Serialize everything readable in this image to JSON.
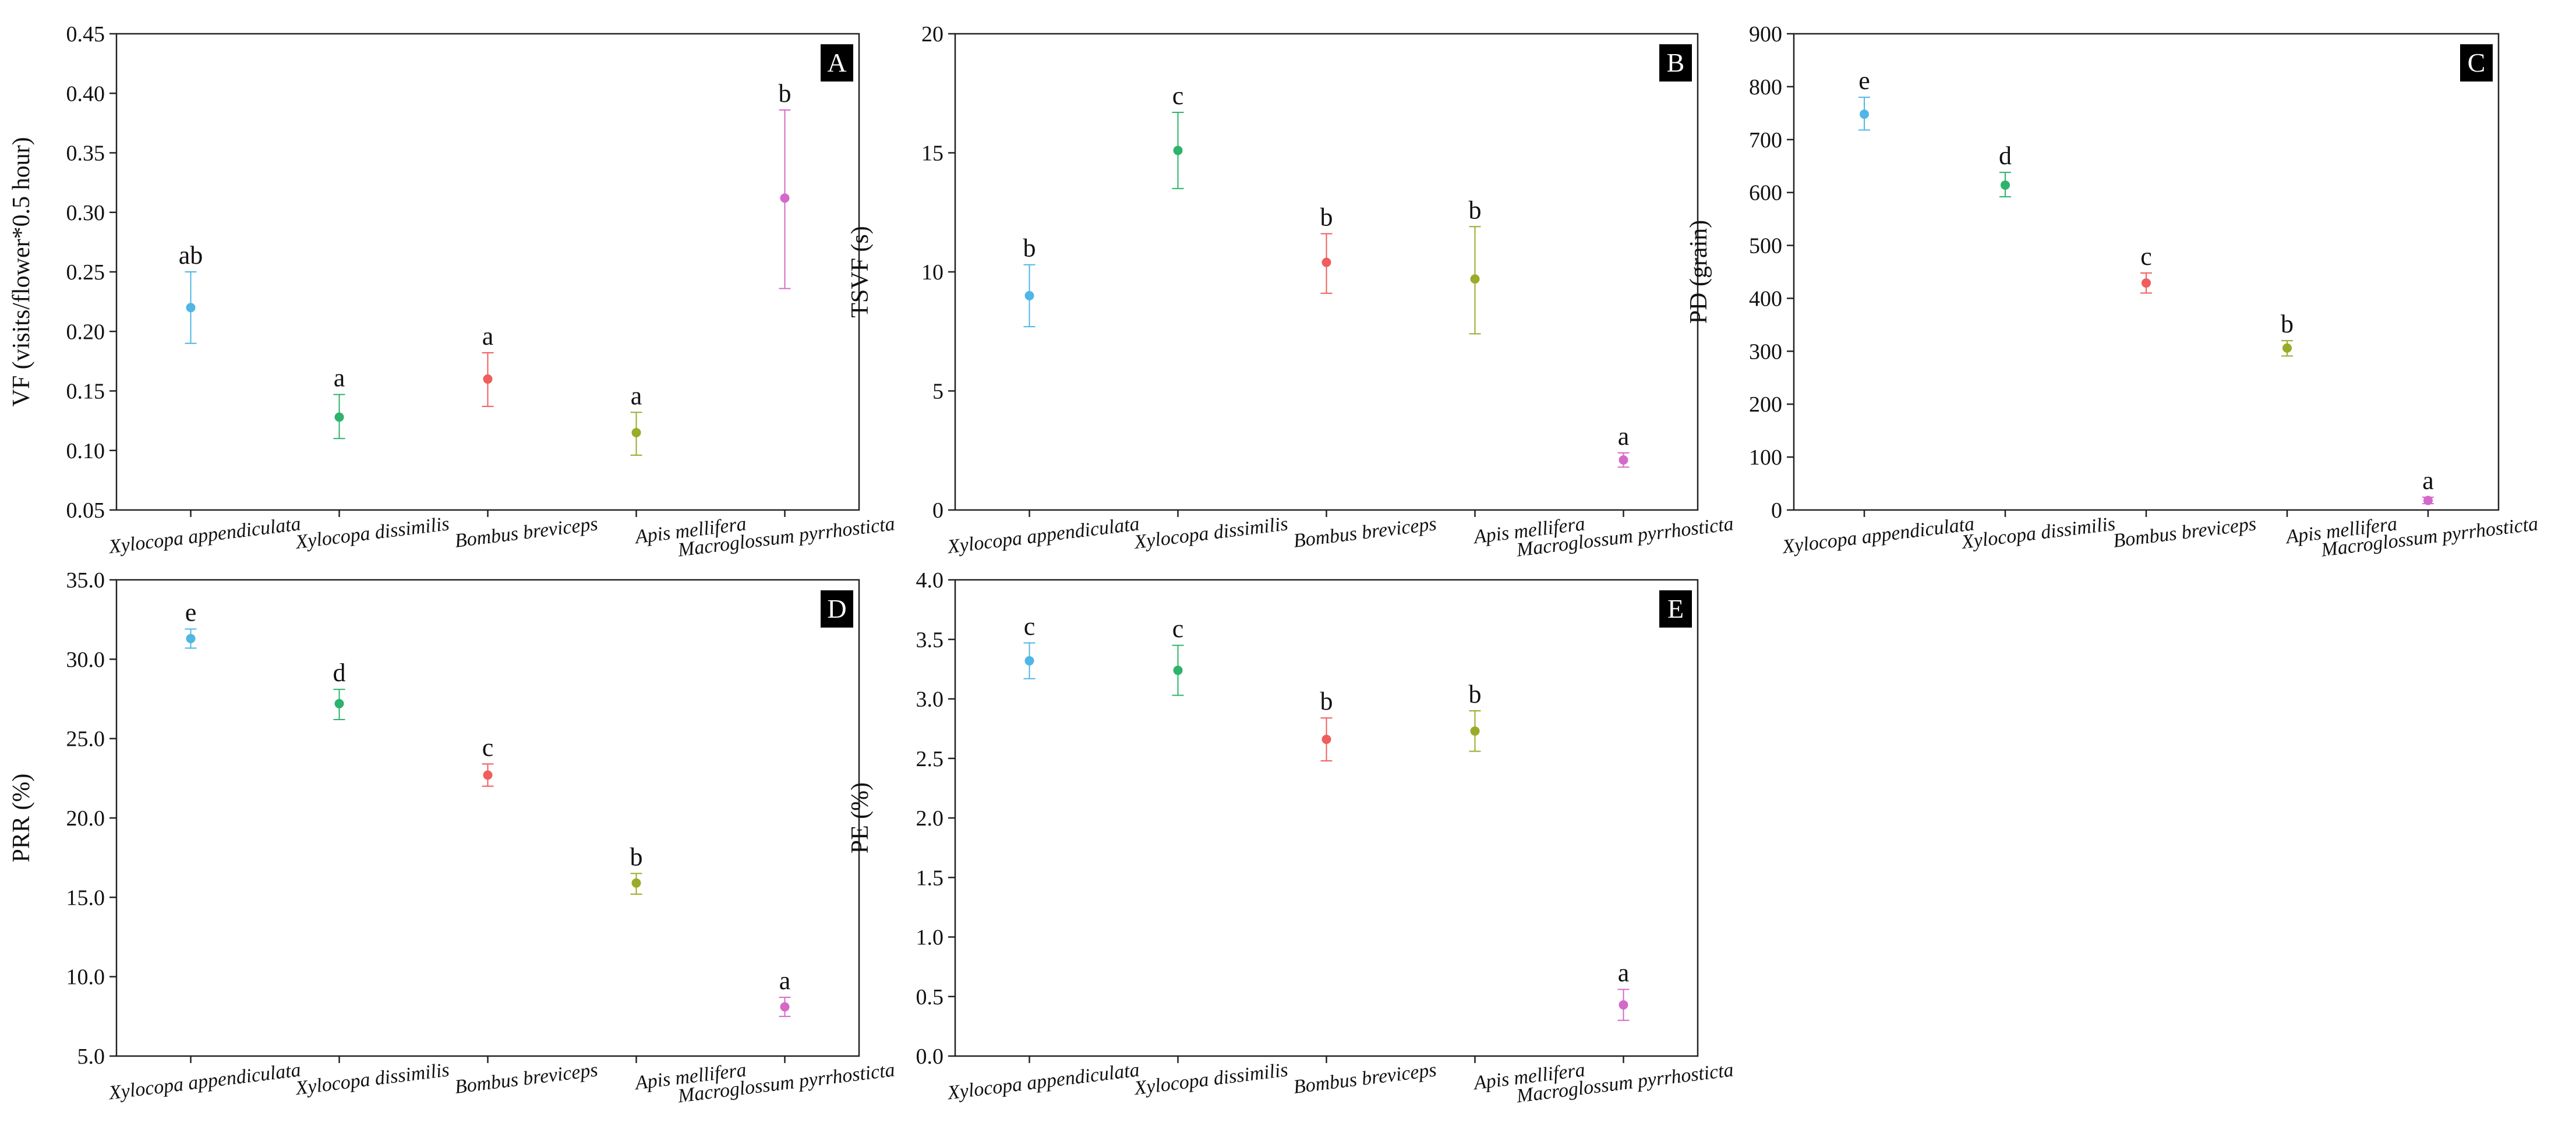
{
  "chart_data": [
    {
      "panel": "A",
      "type": "scatter",
      "ylabel": "VF (visits/flower*0.5 hour)",
      "xlabel": "",
      "ylim": [
        0.05,
        0.45
      ],
      "yticks": [
        0.05,
        0.1,
        0.15,
        0.2,
        0.25,
        0.3,
        0.35,
        0.4,
        0.45
      ],
      "ytick_labels": [
        "0.05",
        "0.10",
        "0.15",
        "0.20",
        "0.25",
        "0.30",
        "0.35",
        "0.40",
        "0.45"
      ],
      "categories": [
        "Xylocopa appendiculata",
        "Xylocopa dissimilis",
        "Bombus breviceps",
        "Apis mellifera",
        "Macroglossum pyrrhosticta"
      ],
      "values": [
        0.22,
        0.128,
        0.16,
        0.115,
        0.312
      ],
      "err_low": [
        0.19,
        0.11,
        0.137,
        0.096,
        0.236
      ],
      "err_high": [
        0.25,
        0.147,
        0.182,
        0.132,
        0.386
      ],
      "letters": [
        "ab",
        "a",
        "a",
        "a",
        "b"
      ],
      "colors": [
        "#4fb6e5",
        "#2db36a",
        "#ef5d5d",
        "#9aab2a",
        "#d36ac8"
      ]
    },
    {
      "panel": "B",
      "type": "scatter",
      "ylabel": "TSVF (s)",
      "xlabel": "",
      "ylim": [
        0,
        20
      ],
      "yticks": [
        0,
        5,
        10,
        15,
        20
      ],
      "ytick_labels": [
        "0",
        "5",
        "10",
        "15",
        "20"
      ],
      "categories": [
        "Xylocopa appendiculata",
        "Xylocopa dissimilis",
        "Bombus breviceps",
        "Apis mellifera",
        "Macroglossum pyrrhosticta"
      ],
      "values": [
        9.0,
        15.1,
        10.4,
        9.7,
        2.1
      ],
      "err_low": [
        7.7,
        13.5,
        9.1,
        7.4,
        1.8
      ],
      "err_high": [
        10.3,
        16.7,
        11.6,
        11.9,
        2.4
      ],
      "letters": [
        "b",
        "c",
        "b",
        "b",
        "a"
      ],
      "colors": [
        "#4fb6e5",
        "#2db36a",
        "#ef5d5d",
        "#9aab2a",
        "#d36ac8"
      ]
    },
    {
      "panel": "C",
      "type": "scatter",
      "ylabel": "PD (grain)",
      "xlabel": "",
      "ylim": [
        0,
        900
      ],
      "yticks": [
        0,
        100,
        200,
        300,
        400,
        500,
        600,
        700,
        800,
        900
      ],
      "ytick_labels": [
        "0",
        "100",
        "200",
        "300",
        "400",
        "500",
        "600",
        "700",
        "800",
        "900"
      ],
      "categories": [
        "Xylocopa appendiculata",
        "Xylocopa dissimilis",
        "Bombus breviceps",
        "Apis mellifera",
        "Macroglossum pyrrhosticta"
      ],
      "values": [
        748,
        614,
        429,
        306,
        18
      ],
      "err_low": [
        718,
        592,
        410,
        291,
        12
      ],
      "err_high": [
        780,
        638,
        448,
        320,
        24
      ],
      "letters": [
        "e",
        "d",
        "c",
        "b",
        "a"
      ],
      "colors": [
        "#4fb6e5",
        "#2db36a",
        "#ef5d5d",
        "#9aab2a",
        "#d36ac8"
      ]
    },
    {
      "panel": "D",
      "type": "scatter",
      "ylabel": "PRR (%)",
      "xlabel": "",
      "ylim": [
        5,
        35
      ],
      "yticks": [
        5,
        10,
        15,
        20,
        25,
        30,
        35
      ],
      "ytick_labels": [
        "5.0",
        "10.0",
        "15.0",
        "20.0",
        "25.0",
        "30.0",
        "35.0"
      ],
      "categories": [
        "Xylocopa appendiculata",
        "Xylocopa dissimilis",
        "Bombus breviceps",
        "Apis mellifera",
        "Macroglossum pyrrhosticta"
      ],
      "values": [
        31.3,
        27.2,
        22.7,
        15.9,
        8.1
      ],
      "err_low": [
        30.7,
        26.2,
        22.0,
        15.2,
        7.5
      ],
      "err_high": [
        31.9,
        28.1,
        23.4,
        16.5,
        8.7
      ],
      "letters": [
        "e",
        "d",
        "c",
        "b",
        "a"
      ],
      "colors": [
        "#4fb6e5",
        "#2db36a",
        "#ef5d5d",
        "#9aab2a",
        "#d36ac8"
      ]
    },
    {
      "panel": "E",
      "type": "scatter",
      "ylabel": "PE (%)",
      "xlabel": "",
      "ylim": [
        0,
        4
      ],
      "yticks": [
        0,
        0.5,
        1.0,
        1.5,
        2.0,
        2.5,
        3.0,
        3.5,
        4.0
      ],
      "ytick_labels": [
        "0.0",
        "0.5",
        "1.0",
        "1.5",
        "2.0",
        "2.5",
        "3.0",
        "3.5",
        "4.0"
      ],
      "categories": [
        "Xylocopa appendiculata",
        "Xylocopa dissimilis",
        "Bombus breviceps",
        "Apis mellifera",
        "Macroglossum pyrrhosticta"
      ],
      "values": [
        3.32,
        3.24,
        2.66,
        2.73,
        0.43
      ],
      "err_low": [
        3.17,
        3.03,
        2.48,
        2.56,
        0.3
      ],
      "err_high": [
        3.47,
        3.45,
        2.84,
        2.9,
        0.56
      ],
      "letters": [
        "c",
        "c",
        "b",
        "b",
        "a"
      ],
      "colors": [
        "#4fb6e5",
        "#2db36a",
        "#ef5d5d",
        "#9aab2a",
        "#d36ac8"
      ]
    }
  ]
}
